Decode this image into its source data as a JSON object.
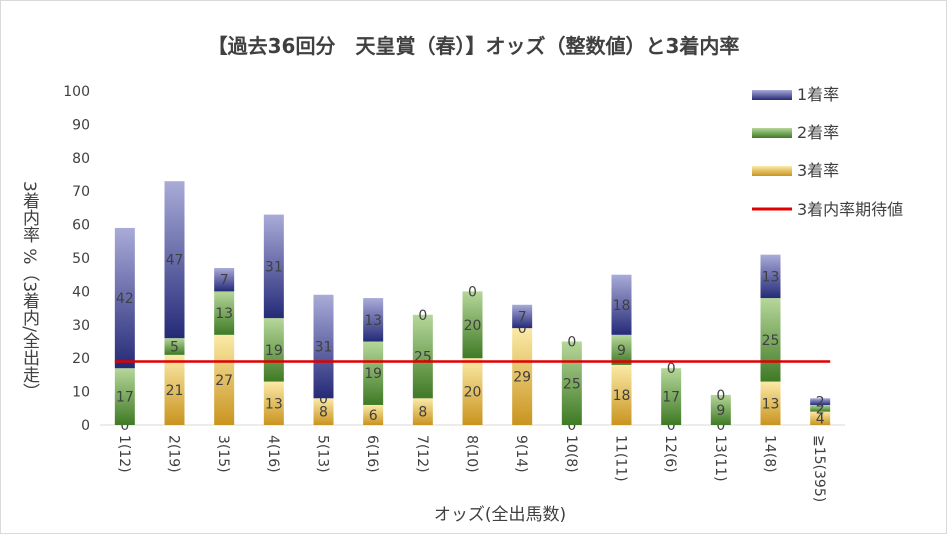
{
  "chart_data": {
    "type": "bar",
    "title": "【過去36回分　天皇賞（春）】オッズ（整数値）と3着内率",
    "xlabel": "オッズ(全出馬数)",
    "ylabel": "3着内率 %（3着内/全出走）",
    "ylim": [
      0,
      100
    ],
    "yticks": [
      "0",
      "10",
      "20",
      "30",
      "40",
      "50",
      "60",
      "70",
      "80",
      "90",
      "100"
    ],
    "stacked": true,
    "categories": [
      "1(12)",
      "2(19)",
      "3(15)",
      "4(16)",
      "5(13)",
      "6(16)",
      "7(12)",
      "8(10)",
      "9(14)",
      "10(8)",
      "11(11)",
      "12(6)",
      "13(11)",
      "14(8)",
      "≧15(395)"
    ],
    "series": [
      {
        "name": "3着率",
        "color": "#d4a02a",
        "values": [
          0,
          21,
          27,
          13,
          8,
          6,
          8,
          20,
          29,
          0,
          18,
          0,
          0,
          13,
          4
        ],
        "labels": [
          "0",
          "21",
          "27",
          "13",
          "8",
          "6",
          "8",
          "20",
          "29",
          "0",
          "18",
          "0",
          "0",
          "13",
          "4"
        ]
      },
      {
        "name": "2着率",
        "color": "#4f8a2e",
        "values": [
          17,
          5,
          13,
          19,
          0,
          19,
          25,
          20,
          0,
          25,
          9,
          17,
          9,
          25,
          2
        ],
        "labels": [
          "17",
          "5",
          "13",
          "19",
          "0",
          "19",
          "25",
          "20",
          "0",
          "25",
          "9",
          "17",
          "9",
          "25",
          "2"
        ]
      },
      {
        "name": "1着率",
        "color": "#2e3480",
        "values": [
          42,
          47,
          7,
          31,
          31,
          13,
          0,
          0,
          7,
          0,
          18,
          0,
          0,
          13,
          2
        ],
        "labels": [
          "42",
          "47",
          "7",
          "31",
          "31",
          "13",
          "0",
          "0",
          "7",
          "0",
          "18",
          "0",
          "0",
          "13",
          "2"
        ]
      }
    ],
    "reference_line": {
      "name": "3着内率期待値",
      "value": 19,
      "color": "#e00000"
    },
    "legend": {
      "position": "right-top",
      "entries": [
        "1着率",
        "2着率",
        "3着率",
        "3着内率期待値"
      ]
    },
    "grid": false
  }
}
